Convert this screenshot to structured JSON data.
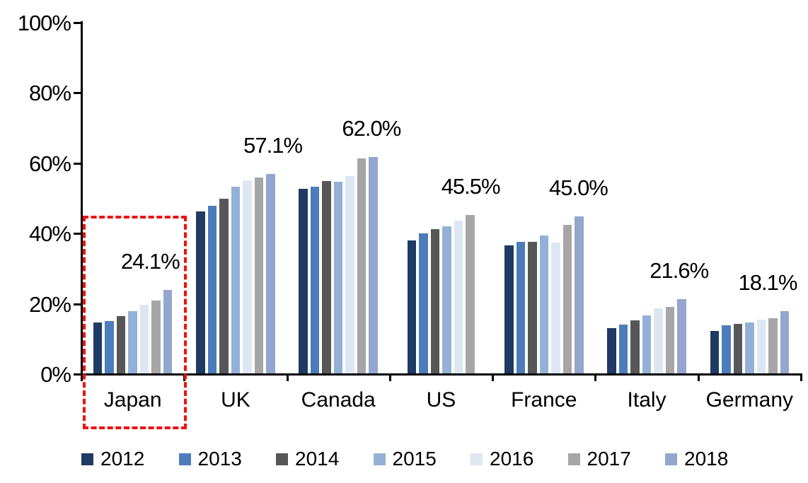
{
  "chart_data": {
    "type": "bar",
    "title": "",
    "xlabel": "",
    "ylabel": "",
    "ylim": [
      0,
      100
    ],
    "grid": false,
    "legend_position": "bottom",
    "yticks": [
      "0%",
      "20%",
      "40%",
      "60%",
      "80%",
      "100%"
    ],
    "categories": [
      "Japan",
      "UK",
      "Canada",
      "US",
      "France",
      "Italy",
      "Germany"
    ],
    "series": [
      {
        "name": "2012",
        "color": "#1F3B63",
        "values": [
          14.9,
          46.5,
          53.0,
          38.2,
          36.8,
          13.3,
          12.5
        ]
      },
      {
        "name": "2013",
        "color": "#4C7DBB",
        "values": [
          15.2,
          48.0,
          53.6,
          40.2,
          37.8,
          14.3,
          14.1
        ]
      },
      {
        "name": "2014",
        "color": "#575757",
        "values": [
          16.8,
          50.2,
          55.1,
          41.4,
          37.8,
          15.4,
          14.5
        ]
      },
      {
        "name": "2015",
        "color": "#93B1D7",
        "values": [
          18.2,
          53.6,
          54.9,
          42.2,
          39.6,
          17.0,
          14.9
        ]
      },
      {
        "name": "2016",
        "color": "#DDE7F2",
        "values": [
          20.0,
          55.3,
          56.5,
          43.8,
          37.6,
          19.0,
          15.6
        ]
      },
      {
        "name": "2017",
        "color": "#A6A6A6",
        "values": [
          21.2,
          56.1,
          61.6,
          45.5,
          42.6,
          19.4,
          16.0
        ]
      },
      {
        "name": "2018",
        "color": "#93A6CE",
        "values": [
          24.1,
          57.1,
          62.0,
          null,
          45.0,
          21.6,
          18.1
        ]
      }
    ],
    "annotations": [
      {
        "category": "Japan",
        "text": "24.1%",
        "value": 24.1,
        "dx": -48
      },
      {
        "category": "UK",
        "text": "57.1%",
        "value": 57.1,
        "dx": -20
      },
      {
        "category": "Canada",
        "text": "62.0%",
        "value": 62.0,
        "dx": -26
      },
      {
        "category": "US",
        "text": "45.5%",
        "value": 45.5,
        "dx": -31
      },
      {
        "category": "France",
        "text": "45.0%",
        "value": 45.0,
        "dx": -24
      },
      {
        "category": "Italy",
        "text": "21.6%",
        "value": 21.6,
        "dx": -27
      },
      {
        "category": "Germany",
        "text": "18.1%",
        "value": 18.1,
        "dx": -47
      }
    ],
    "highlight": {
      "category": "Japan",
      "style": "red-dashed-box",
      "color": "#EE1111"
    }
  },
  "legend": {
    "items": [
      {
        "label": "2012",
        "color": "#1F3B63"
      },
      {
        "label": "2013",
        "color": "#4C7DBB"
      },
      {
        "label": "2014",
        "color": "#575757"
      },
      {
        "label": "2015",
        "color": "#93B1D7"
      },
      {
        "label": "2016",
        "color": "#DDE7F2"
      },
      {
        "label": "2017",
        "color": "#A6A6A6"
      },
      {
        "label": "2018",
        "color": "#93A6CE"
      }
    ]
  }
}
